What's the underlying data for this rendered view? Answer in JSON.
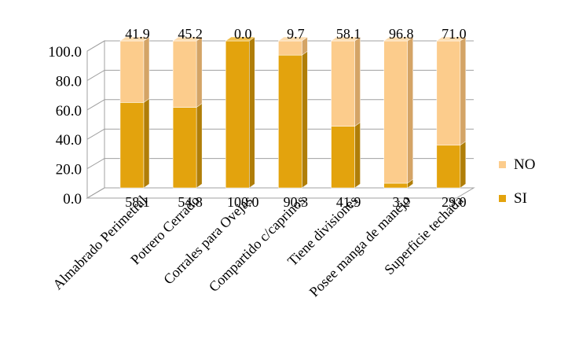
{
  "chart_data": {
    "type": "bar",
    "stacked": true,
    "three_d": true,
    "title": "",
    "xlabel": "",
    "ylabel": "",
    "ylim": [
      0,
      100
    ],
    "ytick_step": 20,
    "yticks": [
      "0.0",
      "20.0",
      "40.0",
      "60.0",
      "80.0",
      "100.0"
    ],
    "grid": true,
    "legend_position": "right",
    "categories": [
      "Almabrado Perimetral",
      "Potrero Cerrado",
      "Corrales para Ovejas",
      "Compartido c/caprinos",
      "Tiene divisiones",
      "Posee manga de manejo",
      "Superficie techada"
    ],
    "series": [
      {
        "name": "SI",
        "color": "#E3A30D",
        "side_color": "#B07E08",
        "top_color": "#F0BE4A",
        "values": [
          58.1,
          54.8,
          100.0,
          90.3,
          41.9,
          3.2,
          29.0
        ],
        "labels": [
          "58.1",
          "54.8",
          "100.0",
          "90.3",
          "41.9",
          "3.2",
          "29.0"
        ]
      },
      {
        "name": "NO",
        "color": "#FCCC8C",
        "side_color": "#D4A466",
        "top_color": "#FDDDB0",
        "values": [
          41.9,
          45.2,
          0.0,
          9.7,
          58.1,
          96.8,
          71.0
        ],
        "labels": [
          "41.9",
          "45.2",
          "0.0",
          "9.7",
          "58.1",
          "96.8",
          "71.0"
        ]
      }
    ],
    "legend": [
      "NO",
      "SI"
    ]
  }
}
